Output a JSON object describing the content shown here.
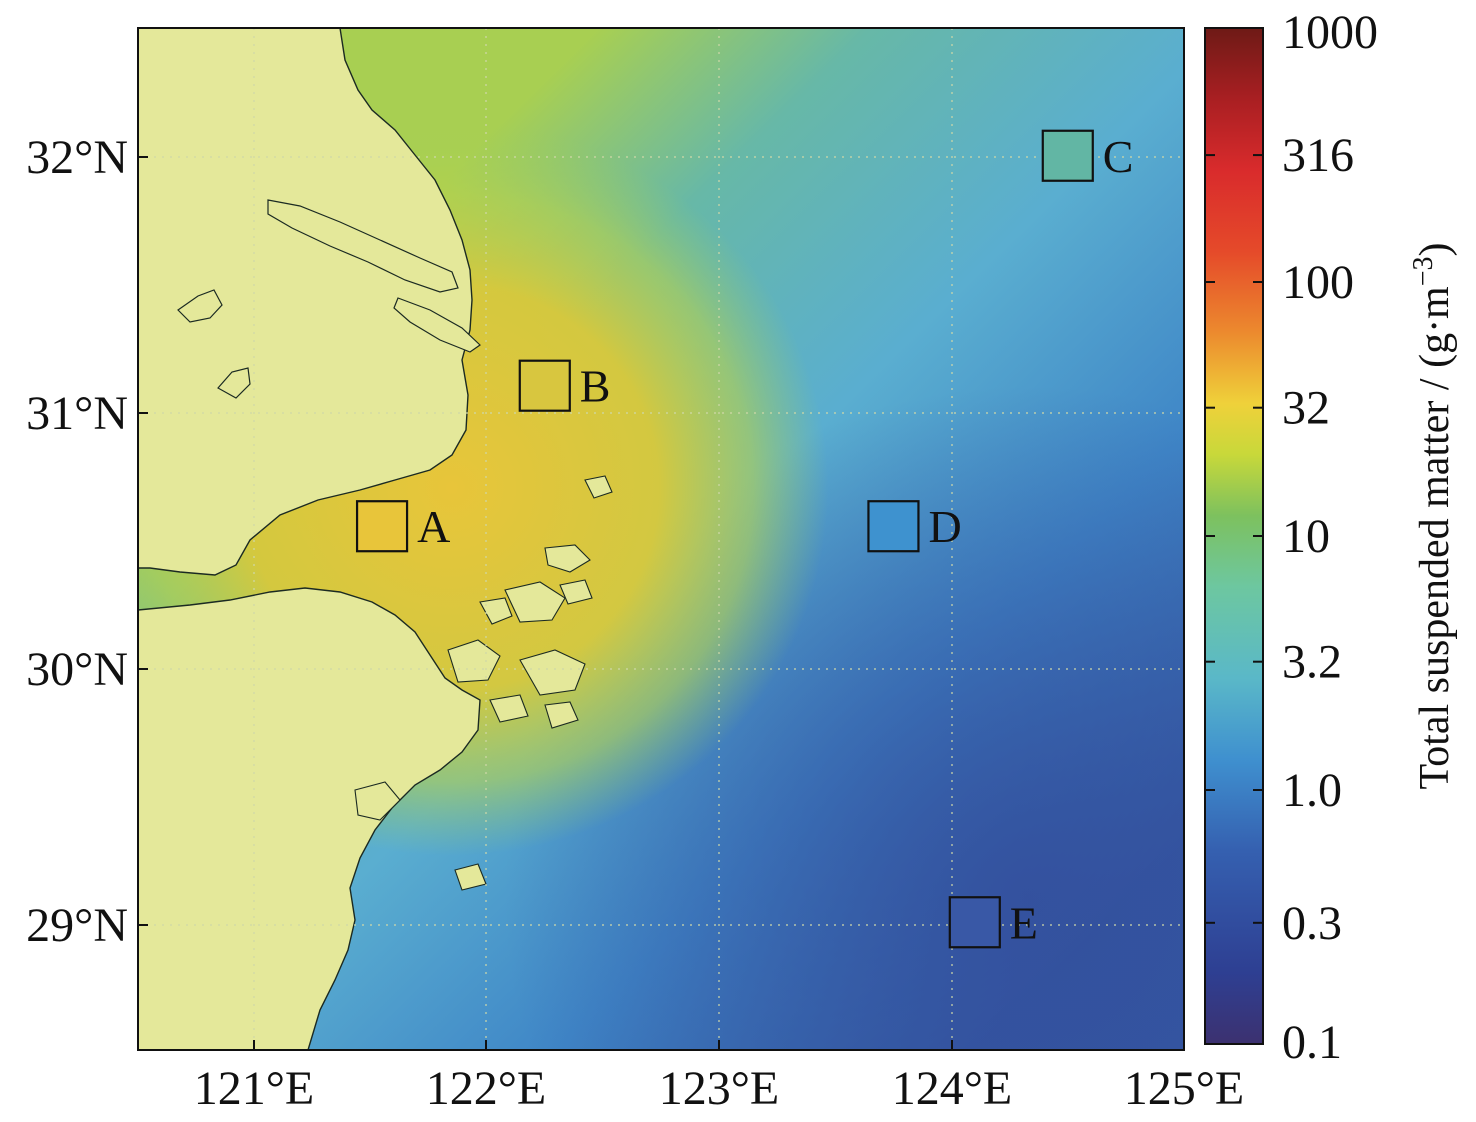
{
  "map": {
    "lon_ticks": [
      "121°E",
      "122°E",
      "123°E",
      "124°E",
      "125°E"
    ],
    "lat_ticks": [
      "32°N",
      "31°N",
      "30°N",
      "29°N"
    ],
    "lon_range": [
      120.5,
      125.0
    ],
    "lat_range": [
      28.5,
      32.5
    ],
    "land_color": "#e4e89a",
    "grid_lines": "dotted"
  },
  "sites": [
    {
      "label": "A",
      "lon": 121.55,
      "lat": 30.55,
      "fill": "#e8c53a"
    },
    {
      "label": "B",
      "lon": 122.25,
      "lat": 31.1,
      "fill": "#d8c63f"
    },
    {
      "label": "C",
      "lon": 124.5,
      "lat": 32.0,
      "fill": "#62b6a4"
    },
    {
      "label": "D",
      "lon": 123.75,
      "lat": 30.55,
      "fill": "#3e92cf"
    },
    {
      "label": "E",
      "lon": 124.1,
      "lat": 29.0,
      "fill": "#3958a6"
    }
  ],
  "colorbar": {
    "title": "Total suspended matter / (g·m",
    "title_exponent": "−3",
    "title_close": ")",
    "scale": "log",
    "range": [
      0.1,
      1000
    ],
    "tick_values": [
      0.1,
      0.3,
      1.0,
      3.2,
      10,
      32,
      100,
      316,
      1000
    ],
    "tick_labels": [
      "0.1",
      "0.3",
      "1.0",
      "3.2",
      "10",
      "32",
      "100",
      "316",
      "1000"
    ],
    "colors": [
      "#3c3170",
      "#2e3f92",
      "#3560b0",
      "#3f90cf",
      "#5ab8c8",
      "#6dc7a0",
      "#7dc15e",
      "#c8d83a",
      "#efd13a",
      "#ec8a2e",
      "#e54a2a",
      "#d92b2c",
      "#a91f22",
      "#6e1a16"
    ]
  }
}
